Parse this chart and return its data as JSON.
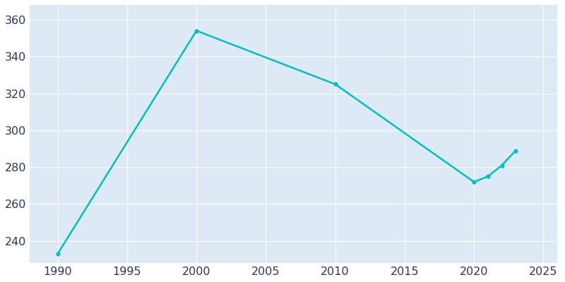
{
  "years": [
    1990,
    2000,
    2010,
    2020,
    2021,
    2022,
    2023
  ],
  "population": [
    233,
    354,
    325,
    272,
    275,
    281,
    289
  ],
  "line_color": "#00BFBF",
  "marker": "o",
  "marker_size": 3.5,
  "line_width": 1.8,
  "plot_bg_color": "#DDEAF5",
  "fig_bg_color": "#FFFFFF",
  "grid_color": "#FFFFFF",
  "xlim": [
    1988,
    2026
  ],
  "ylim": [
    228,
    368
  ],
  "xticks": [
    1990,
    1995,
    2000,
    2005,
    2010,
    2015,
    2020,
    2025
  ],
  "yticks": [
    240,
    260,
    280,
    300,
    320,
    340,
    360
  ],
  "tick_color": "#2D3561",
  "tick_fontsize": 11.5
}
